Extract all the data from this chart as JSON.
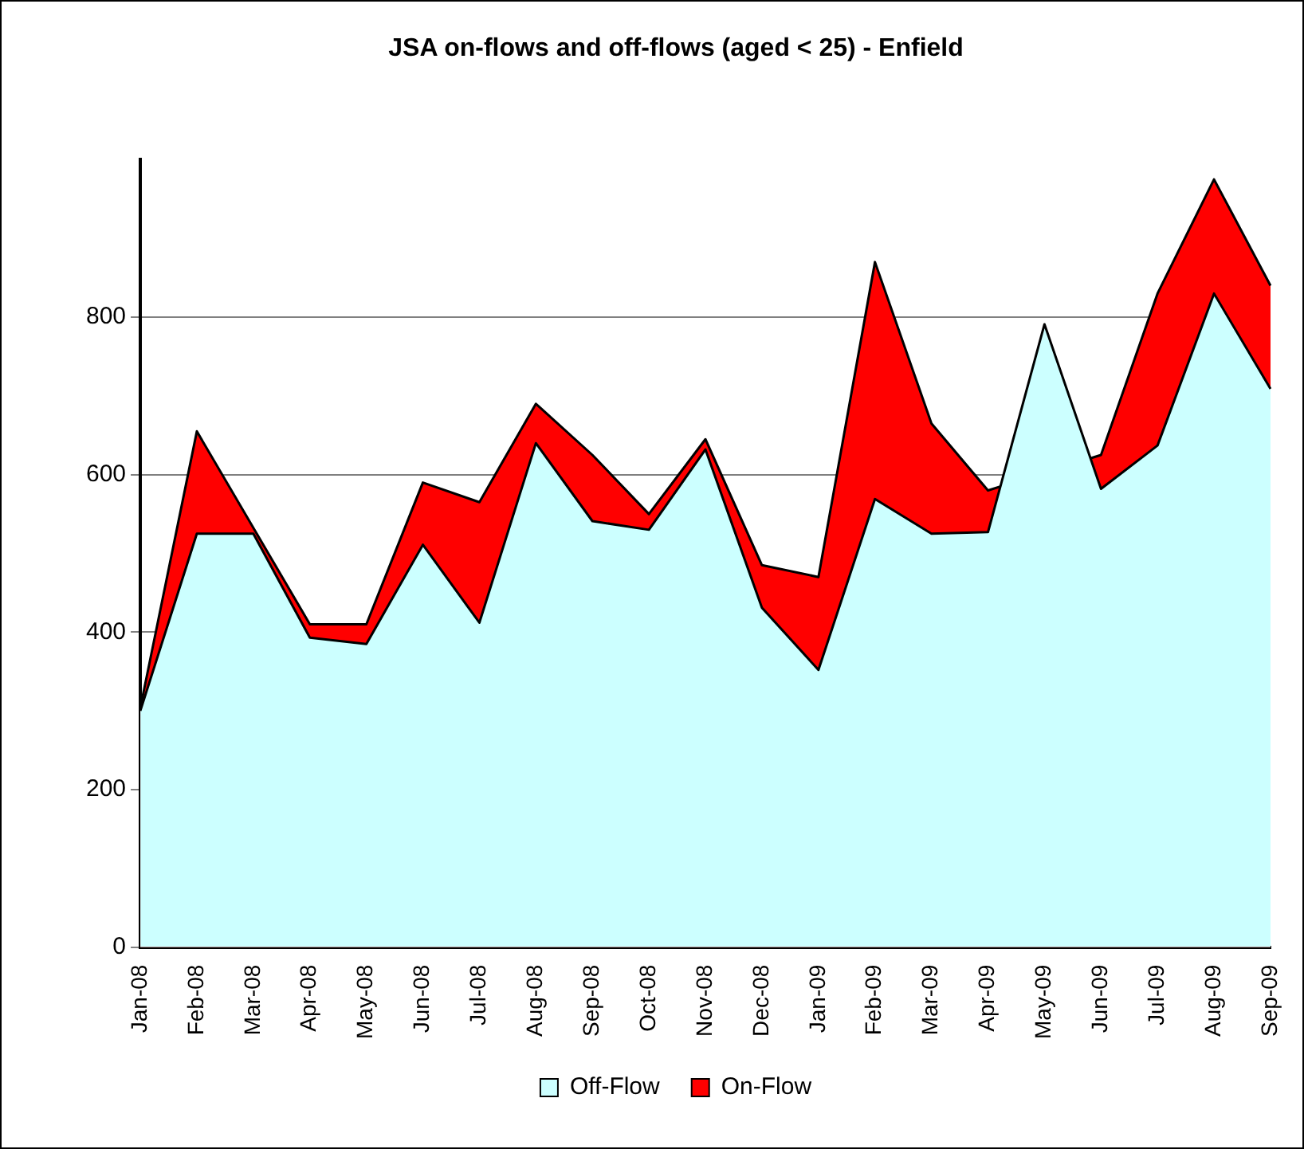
{
  "chart_data": {
    "type": "area",
    "title": "JSA on-flows and off-flows (aged < 25) - Enfield",
    "categories": [
      "Jan-08",
      "Feb-08",
      "Mar-08",
      "Apr-08",
      "May-08",
      "Jun-08",
      "Jul-08",
      "Aug-08",
      "Sep-08",
      "Oct-08",
      "Nov-08",
      "Dec-08",
      "Jan-09",
      "Feb-09",
      "Mar-09",
      "Apr-09",
      "May-09",
      "Jun-09",
      "Jul-09",
      "Aug-09",
      "Sep-09"
    ],
    "series": [
      {
        "name": "Off-Flow",
        "color": "#ccffff",
        "values": [
          300,
          525,
          525,
          393,
          385,
          511,
          412,
          640,
          541,
          530,
          632,
          431,
          352,
          569,
          525,
          527,
          791,
          582,
          637,
          830,
          709
        ]
      },
      {
        "name": "On-Flow",
        "color": "#ff0000",
        "values": [
          304,
          655,
          null,
          410,
          410,
          590,
          565,
          690,
          625,
          550,
          645,
          485,
          470,
          870,
          665,
          580,
          null,
          625,
          830,
          975,
          840
        ]
      }
    ],
    "ylim": [
      0,
      1000
    ],
    "yticks": [
      0,
      200,
      400,
      600,
      800
    ],
    "grid": "y",
    "legend": "bottom"
  }
}
